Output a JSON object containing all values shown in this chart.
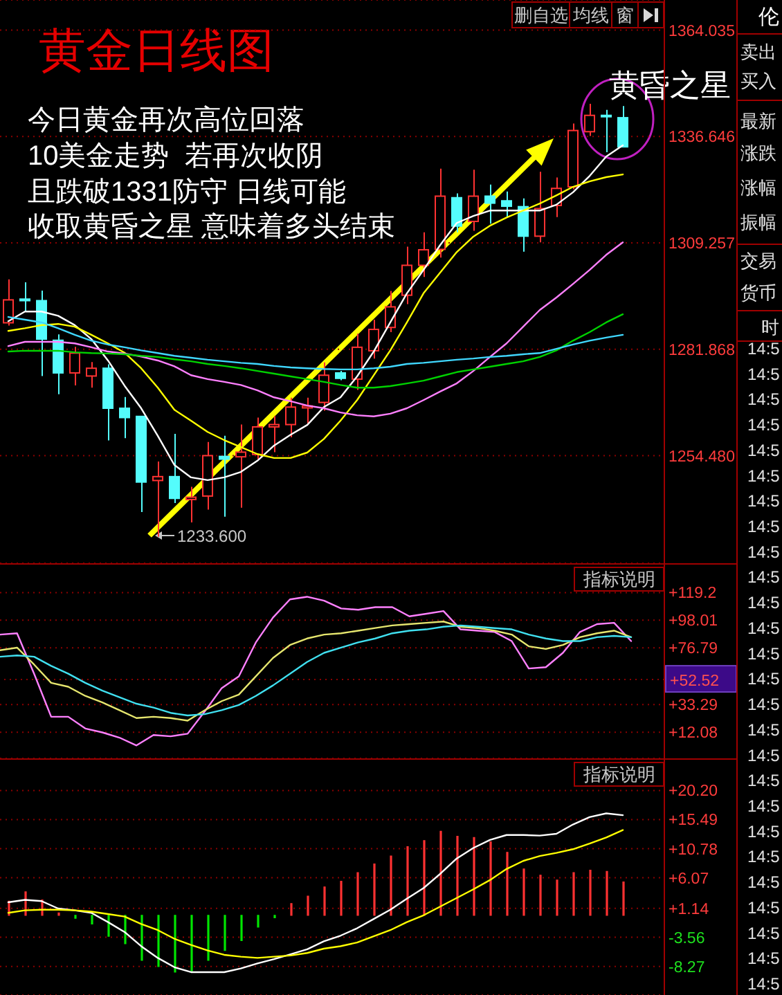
{
  "chart_data": [
    {
      "type": "candlestick",
      "title": "黄金日线图",
      "categories": [
        null,
        null,
        null,
        null,
        null,
        null,
        null,
        null,
        null,
        null,
        null,
        null,
        null,
        null,
        null,
        null,
        null,
        null,
        null,
        null,
        null,
        null,
        null,
        null,
        null,
        null,
        null,
        null,
        null,
        null,
        null,
        null,
        null,
        null,
        null,
        null,
        null,
        null
      ],
      "ohlc": [
        [
          1288.7,
          1299.9,
          1288.0,
          1294.6
        ],
        [
          1294.8,
          1299.1,
          1291.6,
          1294.4
        ],
        [
          1294.4,
          1297.0,
          1275.0,
          1284.5
        ],
        [
          1284.2,
          1285.7,
          1270.3,
          1275.8
        ],
        [
          1275.8,
          1282.5,
          1272.6,
          1280.9
        ],
        [
          1275.0,
          1278.6,
          1272.0,
          1277.0
        ],
        [
          1277.0,
          1278.0,
          1258.4,
          1266.7
        ],
        [
          1266.7,
          1269.6,
          1259.0,
          1264.3
        ],
        [
          1264.6,
          1264.6,
          1240.0,
          1247.7
        ],
        [
          1248.1,
          1253.0,
          1233.6,
          1249.1
        ],
        [
          1249.1,
          1260.1,
          1242.3,
          1243.5
        ],
        [
          1243.2,
          1246.5,
          1237.3,
          1243.8
        ],
        [
          1244.1,
          1258.0,
          1240.6,
          1254.5
        ],
        [
          1254.3,
          1259.6,
          1238.8,
          1253.6
        ],
        [
          1254.2,
          1262.5,
          1241.1,
          1255.4
        ],
        [
          1254.8,
          1264.3,
          1253.6,
          1261.9
        ],
        [
          1261.9,
          1264.7,
          1255.4,
          1262.5
        ],
        [
          1262.5,
          1269.4,
          1259.2,
          1267.0
        ],
        [
          1266.8,
          1269.4,
          1262.8,
          1267.3
        ],
        [
          1268.2,
          1278.5,
          1266.1,
          1275.2
        ],
        [
          1275.8,
          1276.3,
          1273.9,
          1274.4
        ],
        [
          1274.2,
          1285.9,
          1271.4,
          1282.4
        ],
        [
          1281.5,
          1289.5,
          1279.5,
          1287.0
        ],
        [
          1287.5,
          1296.9,
          1286.3,
          1292.8
        ],
        [
          1295.8,
          1308.3,
          1293.5,
          1303.5
        ],
        [
          1303.5,
          1312.0,
          1300.5,
          1307.5
        ],
        [
          1307.6,
          1328.4,
          1305.5,
          1321.3
        ],
        [
          1320.9,
          1322.0,
          1312.0,
          1313.6
        ],
        [
          1314.8,
          1328.1,
          1312.4,
          1321.3
        ],
        [
          1321.3,
          1324.3,
          1314.2,
          1319.5
        ],
        [
          1320.1,
          1322.5,
          1315.9,
          1318.7
        ],
        [
          1318.6,
          1320.7,
          1307.0,
          1311.0
        ],
        [
          1311.0,
          1327.6,
          1309.4,
          1318.1
        ],
        [
          1318.9,
          1326.1,
          1315.9,
          1323.3
        ],
        [
          1323.7,
          1340.0,
          1323.1,
          1338.2
        ],
        [
          1337.9,
          1345.1,
          1336.8,
          1342.1
        ],
        [
          1342.1,
          1343.5,
          1332.6,
          1341.9
        ],
        [
          1341.5,
          1344.5,
          1333.9,
          1334.0
        ]
      ],
      "colors": [
        "#ff3232",
        "#54fcfc",
        "#54fcfc",
        "#54fcfc",
        "#ff3232",
        "#ff3232",
        "#54fcfc",
        "#54fcfc",
        "#54fcfc",
        "#ff3232",
        "#54fcfc",
        "#ff3232",
        "#ff3232",
        "#54fcfc",
        "#ff3232",
        "#ff3232",
        "#ff3232",
        "#ff3232",
        "#ff3232",
        "#ff3232",
        "#54fcfc",
        "#ff3232",
        "#ff3232",
        "#ff3232",
        "#ff3232",
        "#ff3232",
        "#ff3232",
        "#54fcfc",
        "#ff3232",
        "#54fcfc",
        "#54fcfc",
        "#54fcfc",
        "#ff3232",
        "#ff3232",
        "#ff3232",
        "#ff3232",
        "#54fcfc",
        "#54fcfc"
      ],
      "series": [
        {
          "type": "line",
          "color": "#ffffff",
          "values": [
            1289.1,
            1291.6,
            1291.6,
            1290.5,
            1288.1,
            1284.5,
            1279.0,
            1272.5,
            1266.7,
            1259.6,
            1252.1,
            1248.9,
            1248.2,
            1248.9,
            1250.3,
            1253.2,
            1257.1,
            1259.9,
            1262.4,
            1267.0,
            1269.5,
            1274.9,
            1281.3,
            1288.8,
            1296.3,
            1302.3,
            1308.7,
            1314.4,
            1316.2,
            1317.6,
            1317.6,
            1317.6,
            1317.6,
            1319.1,
            1322.3,
            1326.5,
            1331.5,
            1334.4
          ]
        },
        {
          "type": "line",
          "color": "#ffff00",
          "values": [
            1286.6,
            1287.3,
            1288.1,
            1288.4,
            1287.7,
            1285.6,
            1283.4,
            1281.0,
            1277.0,
            1272.0,
            1266.3,
            1263.5,
            1260.6,
            1258.5,
            1256.7,
            1254.9,
            1253.9,
            1253.9,
            1255.3,
            1258.8,
            1263.5,
            1268.8,
            1275.2,
            1281.6,
            1288.8,
            1296.3,
            1301.6,
            1306.9,
            1310.9,
            1313.7,
            1315.8,
            1317.6,
            1319.4,
            1321.5,
            1323.7,
            1325.1,
            1326.2,
            1326.9
          ]
        },
        {
          "type": "line",
          "color": "#ff80ff",
          "values": [
            1282.7,
            1283.8,
            1283.8,
            1283.8,
            1283.4,
            1282.4,
            1281.3,
            1280.8,
            1280.0,
            1279.0,
            1277.5,
            1275.2,
            1274.2,
            1273.5,
            1272.7,
            1271.3,
            1269.5,
            1268.5,
            1267.4,
            1266.7,
            1265.6,
            1264.9,
            1264.6,
            1265.3,
            1266.7,
            1268.8,
            1271.0,
            1273.1,
            1276.3,
            1279.9,
            1283.4,
            1287.7,
            1292.0,
            1295.2,
            1298.7,
            1302.3,
            1306.2,
            1309.4
          ]
        },
        {
          "type": "line",
          "color": "#00d200",
          "values": [
            1281.3,
            1281.5,
            1281.5,
            1281.5,
            1281.1,
            1280.9,
            1280.8,
            1280.6,
            1280.2,
            1279.9,
            1279.3,
            1278.8,
            1278.1,
            1277.6,
            1277.0,
            1276.3,
            1275.6,
            1274.9,
            1274.2,
            1273.5,
            1272.7,
            1272.0,
            1272.0,
            1272.4,
            1273.1,
            1273.8,
            1274.9,
            1276.0,
            1276.7,
            1277.4,
            1278.1,
            1278.8,
            1279.9,
            1281.6,
            1284.1,
            1286.3,
            1288.8,
            1290.9
          ]
        },
        {
          "type": "line",
          "color": "#40d8ff",
          "values": [
            1290.2,
            1289.5,
            1288.8,
            1287.3,
            1285.6,
            1284.1,
            1283.1,
            1282.4,
            1281.6,
            1280.9,
            1280.2,
            1279.7,
            1279.2,
            1278.8,
            1278.4,
            1278.1,
            1277.6,
            1277.2,
            1277.0,
            1276.8,
            1276.7,
            1276.7,
            1277.0,
            1277.4,
            1278.1,
            1278.4,
            1278.8,
            1279.2,
            1279.5,
            1279.9,
            1280.2,
            1280.6,
            1280.9,
            1282.0,
            1283.1,
            1284.1,
            1284.9,
            1285.6
          ]
        }
      ],
      "ylim": [
        1226.8,
        1371.8
      ],
      "yticks": [
        {
          "value": 1254.48,
          "label": "1254.480"
        },
        1281.868,
        1309.257,
        1336.646,
        1364.035
      ],
      "grid": "y",
      "tick_labels": "y",
      "annotations": [
        "今日黄金再次高位回落",
        "10美金走势  若再次收阴",
        "且跌破1331防守 日线可能",
        "收取黄昏之星 意味着多头结束",
        "黄昏之星",
        "1233.600",
        "删自选",
        "均线",
        "窗"
      ]
    },
    {
      "type": "line",
      "categories": [
        null,
        null,
        null,
        null,
        null,
        null,
        null,
        null,
        null,
        null,
        null,
        null,
        null,
        null,
        null,
        null,
        null,
        null,
        null,
        null,
        null,
        null,
        null,
        null,
        null,
        null,
        null,
        null,
        null,
        null,
        null,
        null,
        null,
        null,
        null,
        null,
        null,
        null
      ],
      "series": [
        {
          "color": "#ff80ff",
          "values": [
            87,
            88,
            57,
            24,
            24,
            15,
            12,
            8,
            2,
            10,
            9,
            11,
            28,
            46,
            55,
            81,
            100,
            114,
            116,
            113,
            107,
            106,
            108,
            108,
            101,
            103,
            105,
            91,
            90,
            89,
            82,
            61,
            62,
            73,
            89,
            95,
            96,
            82
          ]
        },
        {
          "color": "#e6e66e",
          "values": [
            75,
            77,
            64,
            50,
            47,
            40,
            35,
            29,
            23,
            24,
            23,
            21,
            29,
            36,
            41,
            55,
            69,
            79,
            84,
            87,
            88,
            90,
            92,
            94,
            95,
            96,
            97,
            93,
            92,
            90,
            87,
            78,
            76,
            79,
            85,
            88,
            90,
            85
          ]
        },
        {
          "color": "#40e0f0",
          "values": [
            70,
            71,
            70,
            63,
            57,
            50,
            44,
            39,
            34,
            31,
            27,
            25,
            26,
            29,
            33,
            40,
            48,
            57,
            66,
            73,
            77,
            81,
            84,
            88,
            90,
            91,
            93,
            94,
            93,
            92,
            91,
            87,
            84,
            82,
            82,
            85,
            86,
            85
          ]
        }
      ],
      "ylim": [
        -7.9,
        141.7
      ],
      "yticks": [
        {
          "value": 12.08,
          "label": "+12.08"
        },
        {
          "value": 33.29,
          "label": "+33.29"
        },
        {
          "value": 76.79,
          "label": "+76.79"
        },
        {
          "value": 98.01,
          "label": "+98.01"
        },
        {
          "value": 119.2,
          "label": "+119.2"
        }
      ],
      "ref_lines": [
        {
          "axis": "y",
          "value": 52.52,
          "label": "+52.52"
        }
      ],
      "grid": "y",
      "tick_labels": "y",
      "annotations": [
        "指标说明"
      ]
    },
    {
      "type": "bar",
      "categories": [
        null,
        null,
        null,
        null,
        null,
        null,
        null,
        null,
        null,
        null,
        null,
        null,
        null,
        null,
        null,
        null,
        null,
        null,
        null,
        null,
        null,
        null,
        null,
        null,
        null,
        null,
        null,
        null,
        null,
        null,
        null,
        null,
        null,
        null,
        null,
        null,
        null,
        null
      ],
      "series": [
        {
          "type": "bar",
          "colors": [
            "#ff3232",
            "#ff3232",
            "#ff3232",
            "#ff3232",
            "#00e600",
            "#00e600",
            "#00e600",
            "#00e600",
            "#00e600",
            "#00e600",
            "#00e600",
            "#00e600",
            "#00e600",
            "#00e600",
            "#00e600",
            "#00e600",
            "#00e600",
            "#ff3232",
            "#ff3232",
            "#ff3232",
            "#ff3232",
            "#ff3232",
            "#ff3232",
            "#ff3232",
            "#ff3232",
            "#ff3232",
            "#ff3232",
            "#ff3232",
            "#ff3232",
            "#ff3232",
            "#ff3232",
            "#ff3232",
            "#ff3232",
            "#ff3232",
            "#ff3232",
            "#ff3232",
            "#ff3232",
            "#ff3232"
          ],
          "values": [
            2.3,
            3.8,
            2.5,
            0.4,
            -0.5,
            -1.4,
            -3.4,
            -4.6,
            -7.3,
            -8.3,
            -9.2,
            -9.0,
            -7.3,
            -5.7,
            -4.1,
            -1.9,
            -0.4,
            1.9,
            3.1,
            4.6,
            5.5,
            6.9,
            8.3,
            9.6,
            11.1,
            12.1,
            13.6,
            12.8,
            12.6,
            11.9,
            10.2,
            7.5,
            6.5,
            5.7,
            6.9,
            7.3,
            7.1,
            5.4
          ]
        },
        {
          "type": "line",
          "color": "#ffffff",
          "values": [
            2.1,
            2.5,
            2.3,
            1.1,
            0.8,
            0.4,
            -1.1,
            -2.7,
            -5.0,
            -6.9,
            -8.4,
            -9.2,
            -9.2,
            -9.2,
            -8.6,
            -7.8,
            -7.1,
            -6.3,
            -5.5,
            -4.2,
            -3.3,
            -2.1,
            -0.6,
            0.9,
            2.7,
            4.4,
            6.7,
            9.2,
            10.9,
            12.2,
            13.0,
            13.0,
            12.9,
            13.2,
            14.7,
            15.9,
            16.5,
            16.2
          ]
        },
        {
          "type": "line",
          "color": "#ffff00",
          "values": [
            0.4,
            0.8,
            0.9,
            0.9,
            0.8,
            0.6,
            0.2,
            -0.2,
            -1.4,
            -2.4,
            -3.8,
            -4.8,
            -5.7,
            -6.4,
            -6.7,
            -6.9,
            -6.7,
            -6.5,
            -6.1,
            -5.4,
            -5.0,
            -4.4,
            -3.4,
            -2.4,
            -1.1,
            0,
            1.4,
            2.8,
            4.2,
            5.7,
            7.5,
            8.8,
            9.6,
            10.1,
            10.7,
            11.6,
            12.6,
            13.8
          ]
        }
      ],
      "ylim": [
        -12.9,
        25.4
      ],
      "yticks": [
        -8.27,
        -3.56,
        {
          "value": 1.14,
          "label": "+1.14"
        },
        {
          "value": 6.07,
          "label": "+6.07"
        },
        {
          "value": 10.78,
          "label": "+10.78"
        },
        {
          "value": 15.49,
          "label": "+15.49"
        },
        {
          "value": 20.2,
          "label": "+20.20"
        }
      ],
      "grid": "y",
      "tick_labels": "y",
      "annotations": [
        "指标说明"
      ]
    },
    {
      "type": "other",
      "title": "伦",
      "annotations": [
        "卖出",
        "买入",
        "最新",
        "涨跌",
        "涨幅",
        "振幅",
        "交易",
        "货币",
        "时",
        "14:5",
        "14:5",
        "14:5",
        "14:5",
        "14:5",
        "14:5",
        "14:5",
        "14:5",
        "14:5",
        "14:5",
        "14:5",
        "14:5",
        "14:5",
        "14:5",
        "14:5",
        "14:5",
        "14:5",
        "14:5",
        "14:5",
        "14:5",
        "14:5",
        "14:5",
        "14:5",
        "14:5",
        "14:5",
        "14:5"
      ]
    }
  ]
}
